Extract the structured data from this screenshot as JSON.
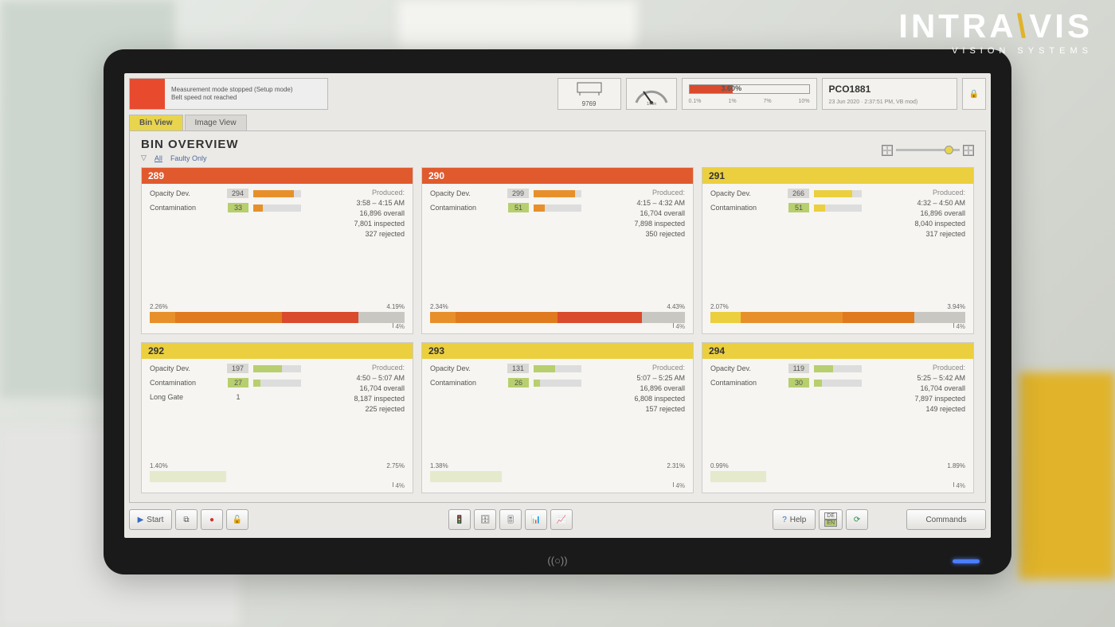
{
  "brand": {
    "line1a": "INTRA",
    "line1b": "VIS",
    "line2": "VISION SYSTEMS"
  },
  "colors": {
    "alarm": "#e84a2e",
    "yellow": "#ebcf3f",
    "orange": "#e7902b",
    "orange2": "#e07a1f",
    "red": "#da4a2c",
    "grey": "#c9c7c2",
    "greenchip": "#b7cf6e",
    "greychip": "#d9d8d4"
  },
  "status": {
    "lamp_color": "#e84a2e",
    "line1": "Measurement mode stopped (Setup mode)",
    "line2": "Belt speed not reached",
    "counter": "9769",
    "gauge_label": "1/min",
    "pct_value": "3.60%",
    "pct_fill": 0.36,
    "scale": [
      "0.1%",
      "1%",
      "7%",
      "10%"
    ],
    "product": "PCO1881",
    "timestamp": "23 Jun 2020 · 2:37:51 PM, VB mod)"
  },
  "tabs": [
    {
      "label": "Bin View",
      "active": true
    },
    {
      "label": "Image View",
      "active": false
    }
  ],
  "panel": {
    "title": "BIN OVERVIEW",
    "filter_all": "All",
    "filter_faulty": "Faulty Only",
    "zoom_pos": 0.82
  },
  "line4_label": "4%",
  "bins": [
    {
      "id": "289",
      "hdr_color": "#e05a2e",
      "metrics": [
        {
          "label": "Opacity Dev.",
          "value": "294",
          "chip": "#d9d8d4",
          "bar_w": 0.85,
          "bar_c": "#e7902b"
        },
        {
          "label": "Contamination",
          "value": "33",
          "chip": "#b7cf6e",
          "bar_w": 0.2,
          "bar_c": "#e7902b"
        }
      ],
      "produced": {
        "time": "3:58 – 4:15 AM",
        "overall": "16,896 overall",
        "inspected": "7,801 inspected",
        "rejected": "327 rejected"
      },
      "pcts": [
        "2.26%",
        "4.19%"
      ],
      "segments": [
        {
          "w": 0.1,
          "c": "#e7902b"
        },
        {
          "w": 0.42,
          "c": "#e07a1f"
        },
        {
          "w": 0.3,
          "c": "#da4a2c"
        },
        {
          "w": 0.18,
          "c": "#c9c7c2"
        }
      ]
    },
    {
      "id": "290",
      "hdr_color": "#e05a2e",
      "metrics": [
        {
          "label": "Opacity Dev.",
          "value": "299",
          "chip": "#d9d8d4",
          "bar_w": 0.86,
          "bar_c": "#e7902b"
        },
        {
          "label": "Contamination",
          "value": "51",
          "chip": "#b7cf6e",
          "bar_w": 0.24,
          "bar_c": "#e7902b"
        }
      ],
      "produced": {
        "time": "4:15 – 4:32 AM",
        "overall": "16,704 overall",
        "inspected": "7,898 inspected",
        "rejected": "350 rejected"
      },
      "pcts": [
        "2.34%",
        "4.43%"
      ],
      "segments": [
        {
          "w": 0.1,
          "c": "#e7902b"
        },
        {
          "w": 0.4,
          "c": "#e07a1f"
        },
        {
          "w": 0.33,
          "c": "#da4a2c"
        },
        {
          "w": 0.17,
          "c": "#c9c7c2"
        }
      ]
    },
    {
      "id": "291",
      "hdr_color": "#ebcf3f",
      "metrics": [
        {
          "label": "Opacity Dev.",
          "value": "266",
          "chip": "#d9d8d4",
          "bar_w": 0.8,
          "bar_c": "#ebcf3f"
        },
        {
          "label": "Contamination",
          "value": "51",
          "chip": "#b7cf6e",
          "bar_w": 0.24,
          "bar_c": "#ebcf3f"
        }
      ],
      "produced": {
        "time": "4:32 – 4:50 AM",
        "overall": "16,896 overall",
        "inspected": "8,040 inspected",
        "rejected": "317 rejected"
      },
      "pcts": [
        "2.07%",
        "3.94%"
      ],
      "segments": [
        {
          "w": 0.12,
          "c": "#ebcf3f"
        },
        {
          "w": 0.4,
          "c": "#e7902b"
        },
        {
          "w": 0.28,
          "c": "#e07a1f"
        },
        {
          "w": 0.2,
          "c": "#c9c7c2"
        }
      ]
    },
    {
      "id": "292",
      "hdr_color": "#ebcf3f",
      "metrics": [
        {
          "label": "Opacity Dev.",
          "value": "197",
          "chip": "#d9d8d4",
          "bar_w": 0.6,
          "bar_c": "#b7cf6e"
        },
        {
          "label": "Contamination",
          "value": "27",
          "chip": "#b7cf6e",
          "bar_w": 0.15,
          "bar_c": "#b7cf6e"
        },
        {
          "label": "Long Gate",
          "value": "1",
          "chip": "",
          "bar_w": 0,
          "bar_c": ""
        }
      ],
      "produced": {
        "time": "4:50 – 5:07 AM",
        "overall": "16,704 overall",
        "inspected": "8,187 inspected",
        "rejected": "225 rejected"
      },
      "pcts": [
        "1.40%",
        "2.75%"
      ],
      "segments": [
        {
          "w": 0.3,
          "c": "#b7cf6e44"
        },
        {
          "w": 0.7,
          "c": "transparent"
        }
      ]
    },
    {
      "id": "293",
      "hdr_color": "#ebcf3f",
      "metrics": [
        {
          "label": "Opacity Dev.",
          "value": "131",
          "chip": "#d9d8d4",
          "bar_w": 0.45,
          "bar_c": "#b7cf6e"
        },
        {
          "label": "Contamination",
          "value": "26",
          "chip": "#b7cf6e",
          "bar_w": 0.14,
          "bar_c": "#b7cf6e"
        }
      ],
      "produced": {
        "time": "5:07 – 5:25 AM",
        "overall": "16,896 overall",
        "inspected": "6,808 inspected",
        "rejected": "157 rejected"
      },
      "pcts": [
        "1.38%",
        "2.31%"
      ],
      "segments": [
        {
          "w": 0.28,
          "c": "#b7cf6e44"
        },
        {
          "w": 0.72,
          "c": "transparent"
        }
      ]
    },
    {
      "id": "294",
      "hdr_color": "#ebcf3f",
      "metrics": [
        {
          "label": "Opacity Dev.",
          "value": "119",
          "chip": "#d9d8d4",
          "bar_w": 0.4,
          "bar_c": "#b7cf6e"
        },
        {
          "label": "Contamination",
          "value": "30",
          "chip": "#b7cf6e",
          "bar_w": 0.16,
          "bar_c": "#b7cf6e"
        }
      ],
      "produced": {
        "time": "5:25 – 5:42 AM",
        "overall": "16,704 overall",
        "inspected": "7,897 inspected",
        "rejected": "149 rejected"
      },
      "pcts": [
        "0.99%",
        "1.89%"
      ],
      "segments": [
        {
          "w": 0.22,
          "c": "#b7cf6e44"
        },
        {
          "w": 0.78,
          "c": "transparent"
        }
      ]
    }
  ],
  "toolbar": {
    "start": "Start",
    "help": "Help",
    "lang1": "DE",
    "lang2": "EN",
    "commands": "Commands"
  },
  "produced_label": "Produced:"
}
